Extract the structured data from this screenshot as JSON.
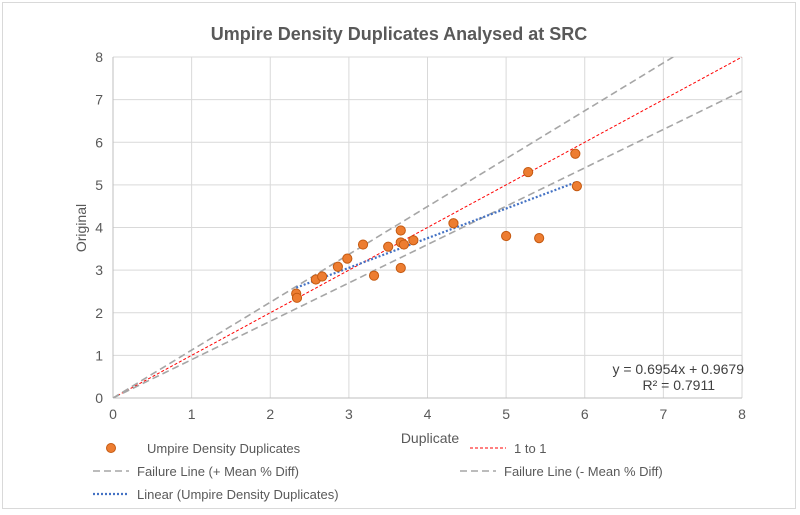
{
  "chart_data": {
    "type": "scatter",
    "title": "Umpire Density Duplicates Analysed at SRC",
    "xlabel": "Duplicate",
    "ylabel": "Original",
    "xlim": [
      0,
      8
    ],
    "ylim": [
      0,
      8
    ],
    "x_ticks": [
      "0",
      "1",
      "2",
      "3",
      "4",
      "5",
      "6",
      "7",
      "8"
    ],
    "y_ticks": [
      "0",
      "1",
      "2",
      "3",
      "4",
      "5",
      "6",
      "7",
      "8"
    ],
    "grid": true,
    "series": [
      {
        "name": "Umpire Density Duplicates",
        "kind": "points",
        "color": "#ed7d31",
        "points": [
          [
            2.33,
            2.45
          ],
          [
            2.34,
            2.35
          ],
          [
            2.58,
            2.78
          ],
          [
            2.66,
            2.85
          ],
          [
            2.86,
            3.08
          ],
          [
            2.98,
            3.27
          ],
          [
            3.18,
            3.6
          ],
          [
            3.32,
            2.87
          ],
          [
            3.5,
            3.55
          ],
          [
            3.66,
            3.93
          ],
          [
            3.66,
            3.65
          ],
          [
            3.7,
            3.6
          ],
          [
            3.82,
            3.7
          ],
          [
            3.66,
            3.05
          ],
          [
            4.33,
            4.1
          ],
          [
            5.0,
            3.8
          ],
          [
            5.28,
            5.3
          ],
          [
            5.42,
            3.75
          ],
          [
            5.88,
            5.73
          ],
          [
            5.9,
            4.97
          ]
        ]
      },
      {
        "name": "1 to 1",
        "kind": "line",
        "color": "#ff0000",
        "slope": 1.0,
        "intercept": 0.0,
        "x_range": [
          0,
          8
        ]
      },
      {
        "name": "Failure Line (+ Mean % Diff)",
        "kind": "line",
        "color": "#a6a6a6",
        "slope": 1.123,
        "intercept": 0.0,
        "x_range": [
          0,
          8
        ]
      },
      {
        "name": "Failure Line (- Mean % Diff)",
        "kind": "line",
        "color": "#a6a6a6",
        "slope": 0.9,
        "intercept": 0.0,
        "x_range": [
          0,
          8
        ]
      },
      {
        "name": "Linear (Umpire Density Duplicates)",
        "kind": "trend",
        "color": "#4472c4",
        "slope": 0.6954,
        "intercept": 0.9679,
        "x_range": [
          2.33,
          5.9
        ]
      }
    ],
    "legend_position": "bottom",
    "annotations": [
      "y = 0.6954x + 0.9679",
      "R² = 0.7911"
    ]
  }
}
